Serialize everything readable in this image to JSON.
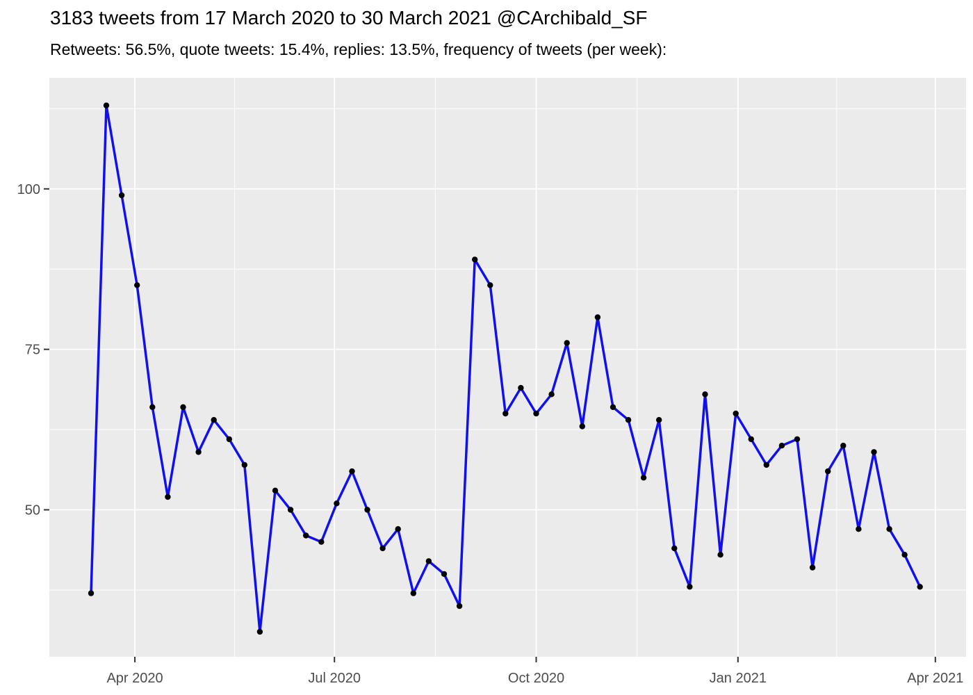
{
  "header": {
    "title": "3183 tweets from 17 March 2020 to 30 March 2021 @CArchibald_SF",
    "subtitle": "Retweets: 56.5%, quote tweets: 15.4%, replies: 13.5%, frequency of tweets (per week):"
  },
  "chart_data": {
    "type": "line",
    "title": "3183 tweets from 17 March 2020 to 30 March 2021 @CArchibald_SF",
    "subtitle": "Retweets: 56.5%, quote tweets: 15.4%, replies: 13.5%, frequency of tweets (per week):",
    "xlabel": "",
    "ylabel": "",
    "series_name": "tweet frequency per week",
    "x": [
      "2020-03-12",
      "2020-03-19",
      "2020-03-26",
      "2020-04-02",
      "2020-04-09",
      "2020-04-16",
      "2020-04-23",
      "2020-04-30",
      "2020-05-07",
      "2020-05-14",
      "2020-05-21",
      "2020-05-28",
      "2020-06-04",
      "2020-06-11",
      "2020-06-18",
      "2020-06-25",
      "2020-07-02",
      "2020-07-09",
      "2020-07-16",
      "2020-07-23",
      "2020-07-30",
      "2020-08-06",
      "2020-08-13",
      "2020-08-20",
      "2020-08-27",
      "2020-09-03",
      "2020-09-10",
      "2020-09-17",
      "2020-09-24",
      "2020-10-01",
      "2020-10-08",
      "2020-10-15",
      "2020-10-22",
      "2020-10-29",
      "2020-11-05",
      "2020-11-12",
      "2020-11-19",
      "2020-11-26",
      "2020-12-03",
      "2020-12-10",
      "2020-12-17",
      "2020-12-24",
      "2020-12-31",
      "2021-01-07",
      "2021-01-14",
      "2021-01-21",
      "2021-01-28",
      "2021-02-04",
      "2021-02-11",
      "2021-02-18",
      "2021-02-25",
      "2021-03-04",
      "2021-03-11",
      "2021-03-18",
      "2021-03-25"
    ],
    "values": [
      37,
      113,
      99,
      85,
      66,
      52,
      66,
      59,
      64,
      61,
      57,
      31,
      53,
      50,
      46,
      45,
      51,
      56,
      50,
      44,
      47,
      37,
      42,
      40,
      35,
      89,
      85,
      65,
      69,
      65,
      68,
      76,
      63,
      80,
      66,
      64,
      55,
      64,
      44,
      38,
      68,
      43,
      65,
      61,
      57,
      60,
      61,
      41,
      56,
      60,
      47,
      59,
      47,
      43,
      38
    ],
    "total_tweets": 3183,
    "y_ticks": [
      50,
      75,
      100
    ],
    "y_minor_ticks": [
      37.5,
      62.5,
      87.5,
      112.5
    ],
    "x_ticks": [
      {
        "label": "Apr 2020",
        "date": "2020-04-01"
      },
      {
        "label": "Jul 2020",
        "date": "2020-07-01"
      },
      {
        "label": "Oct 2020",
        "date": "2020-10-01"
      },
      {
        "label": "Jan 2021",
        "date": "2021-01-01"
      },
      {
        "label": "Apr 2021",
        "date": "2021-04-01"
      }
    ],
    "ylim": [
      27.1,
      117.3
    ],
    "xlim": [
      "2020-02-22",
      "2021-04-15"
    ],
    "grid": true,
    "legend_position": "none",
    "colors": {
      "line": "#1010EE",
      "point": "#000000",
      "panel_bg": "#EBEBEB",
      "grid": "#FFFFFF",
      "axis_text": "#4D4D4D",
      "tick_mark": "#333333",
      "title_text": "#000000",
      "page_bg": "#FFFFFF"
    }
  }
}
